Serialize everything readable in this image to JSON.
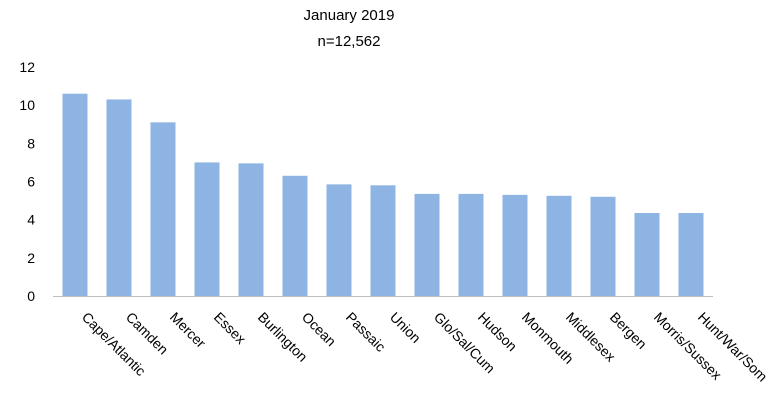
{
  "chart_data": {
    "type": "bar",
    "title": "January 2019",
    "subtitle": "n=12,562",
    "xlabel": "",
    "ylabel": "",
    "ylim": [
      0,
      12
    ],
    "yticks": [
      0,
      2,
      4,
      6,
      8,
      10,
      12
    ],
    "grid": false,
    "bar_color": "#8eb4e3",
    "categories": [
      "Cape/Atlantic",
      "Camden",
      "Mercer",
      "Essex",
      "Burlington",
      "Ocean",
      "Passaic",
      "Union",
      "Glo/Sal/Cum",
      "Hudson",
      "Monmouth",
      "Middlesex",
      "Bergen",
      "Morris/Sussex",
      "Hunt/War/Som"
    ],
    "values": [
      10.6,
      10.3,
      9.1,
      7.0,
      6.95,
      6.3,
      5.85,
      5.8,
      5.35,
      5.35,
      5.3,
      5.25,
      5.2,
      4.35,
      4.35
    ]
  }
}
